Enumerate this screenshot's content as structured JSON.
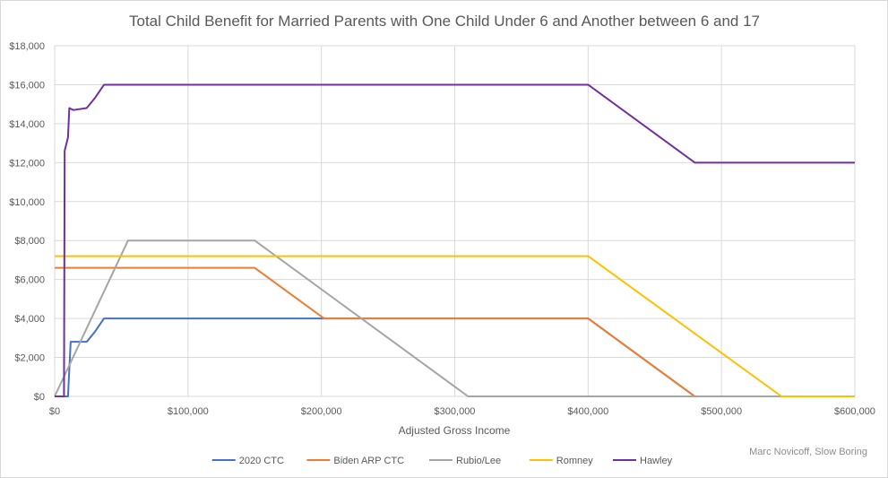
{
  "chart_data": {
    "type": "line",
    "title": "Total Child Benefit for Married Parents with One Child Under 6 and Another between 6 and 17",
    "xlabel": "Adjusted Gross Income",
    "ylabel": "",
    "xlim": [
      0,
      600000
    ],
    "ylim": [
      0,
      18000
    ],
    "x_ticks": [
      0,
      100000,
      200000,
      300000,
      400000,
      500000,
      600000
    ],
    "y_ticks": [
      0,
      2000,
      4000,
      6000,
      8000,
      10000,
      12000,
      14000,
      16000,
      18000
    ],
    "x_tick_labels": [
      "$0",
      "$100,000",
      "$200,000",
      "$300,000",
      "$400,000",
      "$500,000",
      "$600,000"
    ],
    "y_tick_labels": [
      "$0",
      "$2,000",
      "$4,000",
      "$6,000",
      "$8,000",
      "$10,000",
      "$12,000",
      "$14,000",
      "$16,000",
      "$18,000"
    ],
    "grid": true,
    "legend_position": "bottom",
    "series": [
      {
        "name": "2020 CTC",
        "color": "#4472c4",
        "points": [
          [
            0,
            0
          ],
          [
            10000,
            0
          ],
          [
            11000,
            1400
          ],
          [
            12000,
            2800
          ],
          [
            15000,
            2800
          ],
          [
            24000,
            2800
          ],
          [
            30000,
            3300
          ],
          [
            37000,
            4000
          ],
          [
            200000,
            4000
          ],
          [
            400000,
            4000
          ],
          [
            480000,
            0
          ],
          [
            600000,
            0
          ]
        ]
      },
      {
        "name": "Biden ARP CTC",
        "color": "#ed7d31",
        "points": [
          [
            0,
            6600
          ],
          [
            150000,
            6600
          ],
          [
            202000,
            4000
          ],
          [
            400000,
            4000
          ],
          [
            480000,
            0
          ],
          [
            600000,
            0
          ]
        ]
      },
      {
        "name": "Rubio/Lee",
        "color": "#a5a5a5",
        "points": [
          [
            0,
            0
          ],
          [
            55000,
            8000
          ],
          [
            150000,
            8000
          ],
          [
            310000,
            0
          ],
          [
            600000,
            0
          ]
        ]
      },
      {
        "name": "Romney",
        "color": "#ffc000",
        "points": [
          [
            0,
            7200
          ],
          [
            400000,
            7200
          ],
          [
            545000,
            0
          ],
          [
            600000,
            0
          ]
        ]
      },
      {
        "name": "Hawley",
        "color": "#7030a0",
        "points": [
          [
            0,
            0
          ],
          [
            7000,
            0
          ],
          [
            7500,
            12600
          ],
          [
            10000,
            13300
          ],
          [
            11000,
            14800
          ],
          [
            14000,
            14700
          ],
          [
            24000,
            14800
          ],
          [
            30000,
            15300
          ],
          [
            37000,
            16000
          ],
          [
            400000,
            16000
          ],
          [
            480000,
            12000
          ],
          [
            482000,
            12000
          ],
          [
            600000,
            12000
          ]
        ]
      }
    ],
    "annotation": "Marc Novicoff, Slow Boring"
  }
}
